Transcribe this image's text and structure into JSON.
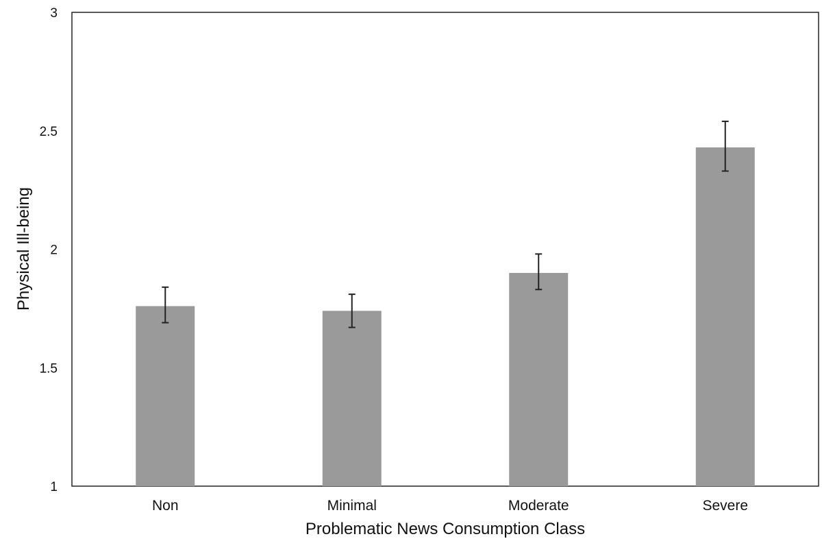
{
  "chart_data": {
    "type": "bar",
    "categories": [
      "Non",
      "Minimal",
      "Moderate",
      "Severe"
    ],
    "values": [
      1.76,
      1.74,
      1.9,
      2.43
    ],
    "error_low": [
      1.69,
      1.67,
      1.83,
      2.33
    ],
    "error_high": [
      1.84,
      1.81,
      1.98,
      2.54
    ],
    "yticks": [
      "1",
      "1.5",
      "2",
      "2.5",
      "3"
    ],
    "ylim": [
      1,
      3
    ],
    "xlabel": "Problematic News Consumption Class",
    "ylabel": "Physical Ill-being",
    "bar_color": "#9a9a9a",
    "grid": false,
    "legend": "none"
  }
}
